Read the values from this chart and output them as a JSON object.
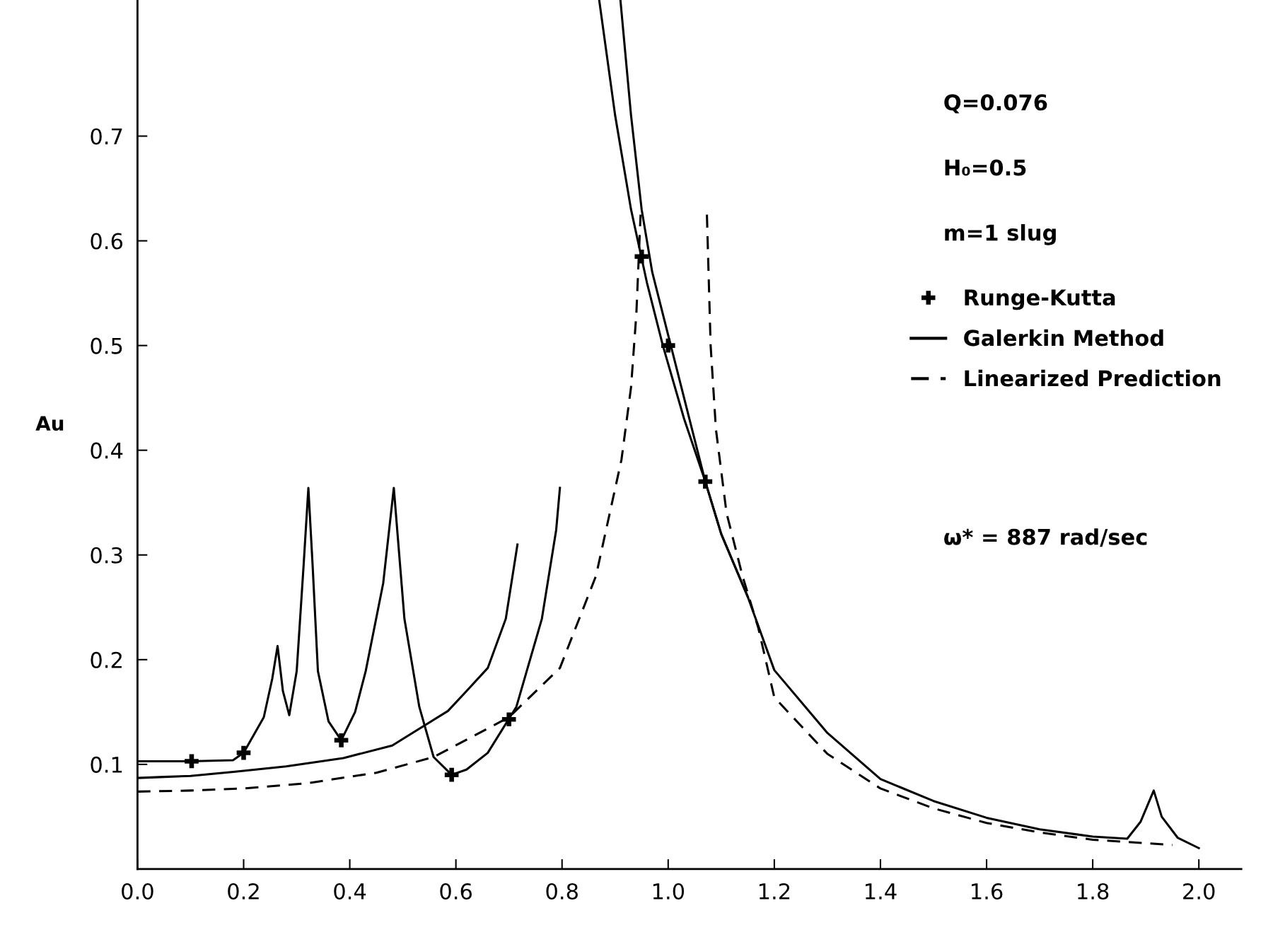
{
  "chart_data": {
    "type": "line",
    "ylabel": "Au",
    "xlim": [
      0,
      2.08
    ],
    "ylim": [
      0,
      0.83
    ],
    "xticks": [
      {
        "value": 0,
        "label": "0.0"
      },
      0.2,
      0.4,
      0.6,
      0.8,
      {
        "value": 1,
        "label": "1.0"
      },
      1.2,
      1.4,
      1.6,
      1.8,
      {
        "value": 2,
        "label": "2.0"
      }
    ],
    "yticks": [
      0.1,
      0.2,
      0.3,
      0.4,
      0.5,
      0.6,
      0.7
    ],
    "grid": false,
    "legend": "top right",
    "annotations": [
      "Q=0.076",
      "H₀=0.5",
      "m=1 slug",
      "ω* = 887 rad/sec"
    ],
    "series": [
      {
        "name": "Runge-Kutta",
        "type": "scatter",
        "marker": "cross",
        "color": "#000000",
        "x": [
          0.102,
          0.2,
          0.384,
          0.592,
          0.7,
          0.95,
          1.0,
          1.07
        ],
        "values": [
          0.103,
          0.111,
          0.123,
          0.09,
          0.143,
          0.585,
          0.5,
          0.37
        ]
      },
      {
        "name": "Galerkin Method",
        "line_style": "solid",
        "color": "#000000",
        "x": [
          0.0,
          0.05,
          0.1,
          0.184,
          0.28,
          0.388,
          0.48,
          0.585,
          0.62,
          0.66,
          0.694,
          0.716
        ],
        "values": [
          0.087,
          0.088,
          0.089,
          0.093,
          0.098,
          0.106,
          0.118,
          0.151,
          0.17,
          0.192,
          0.239,
          0.31
        ]
      },
      {
        "line_style": "solid",
        "color": "#000000",
        "x": [
          0.0,
          0.1,
          0.18,
          0.2,
          0.238,
          0.254,
          0.264,
          0.274,
          0.286,
          0.3,
          0.313,
          0.322,
          0.33,
          0.34,
          0.36,
          0.384,
          0.41,
          0.43,
          0.463,
          0.483,
          0.503,
          0.531,
          0.558,
          0.592,
          0.62,
          0.66,
          0.714,
          0.762,
          0.789,
          0.796
        ],
        "values": [
          0.103,
          0.103,
          0.104,
          0.111,
          0.145,
          0.182,
          0.213,
          0.17,
          0.147,
          0.189,
          0.29,
          0.364,
          0.29,
          0.189,
          0.141,
          0.123,
          0.15,
          0.189,
          0.273,
          0.364,
          0.239,
          0.155,
          0.107,
          0.09,
          0.095,
          0.111,
          0.155,
          0.239,
          0.324,
          0.364
        ]
      },
      {
        "line_style": "solid",
        "color": "#000000",
        "x": [
          0.87,
          0.9,
          0.93,
          0.96,
          0.99,
          1.03,
          1.07,
          1.1,
          1.15,
          1.2,
          1.3,
          1.4,
          1.5,
          1.6,
          1.7,
          1.8,
          1.865,
          1.89,
          1.915,
          1.93,
          1.96,
          2.0
        ],
        "values": [
          0.83,
          0.72,
          0.63,
          0.56,
          0.5,
          0.43,
          0.37,
          0.32,
          0.26,
          0.19,
          0.13,
          0.086,
          0.065,
          0.049,
          0.038,
          0.031,
          0.029,
          0.045,
          0.075,
          0.05,
          0.03,
          0.02
        ]
      },
      {
        "line_style": "solid",
        "color": "#000000",
        "x": [
          0.91,
          0.93,
          0.95,
          0.97,
          1.0,
          1.04,
          1.07,
          1.1,
          1.15
        ],
        "values": [
          0.83,
          0.72,
          0.63,
          0.57,
          0.51,
          0.43,
          0.37,
          0.32,
          0.26
        ]
      },
      {
        "name": "Linearized Prediction",
        "line_style": "dashed",
        "color": "#000000",
        "x": [
          0.0,
          0.1,
          0.2,
          0.32,
          0.45,
          0.558,
          0.7,
          0.796,
          0.864,
          0.912,
          0.93,
          0.94,
          0.948
        ],
        "values": [
          0.074,
          0.075,
          0.077,
          0.082,
          0.092,
          0.107,
          0.145,
          0.192,
          0.28,
          0.391,
          0.46,
          0.53,
          0.625
        ]
      },
      {
        "line_style": "dashed",
        "color": "#000000",
        "x": [
          1.073,
          1.08,
          1.09,
          1.11,
          1.14,
          1.17,
          1.2,
          1.3,
          1.4,
          1.5,
          1.6,
          1.7,
          1.8,
          1.95
        ],
        "values": [
          0.625,
          0.5,
          0.42,
          0.34,
          0.28,
          0.23,
          0.164,
          0.11,
          0.077,
          0.058,
          0.044,
          0.035,
          0.028,
          0.023
        ]
      }
    ]
  }
}
